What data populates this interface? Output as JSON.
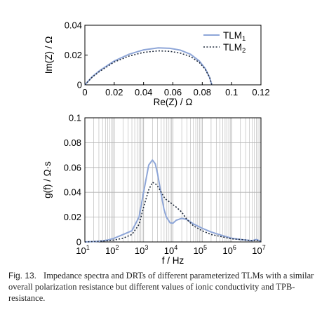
{
  "colors": {
    "tlm1": "#8ea6d8",
    "tlm2": "#1f2a3c",
    "grid": "#b3b3b3",
    "axis": "#000000"
  },
  "chart_data": [
    {
      "type": "line",
      "xlabel": "Re(Z) / Ω",
      "ylabel": "Im(Z) / Ω",
      "xlim": [
        0,
        0.12
      ],
      "ylim": [
        0,
        0.04
      ],
      "xticks": [
        0,
        0.02,
        0.04,
        0.06,
        0.08,
        0.1,
        0.12
      ],
      "xtick_labels": [
        "0",
        "0.02",
        "0.04",
        "0.06",
        "0.08",
        "0.1",
        "0.12"
      ],
      "yticks": [
        0,
        0.02,
        0.04
      ],
      "ytick_labels": [
        "0",
        "0.02",
        "0.04"
      ],
      "grid": false,
      "legend_position": "top-right",
      "series": [
        {
          "name": "TLM1",
          "legend_base": "TLM",
          "legend_sub": "1",
          "style": "solid",
          "x": [
            0,
            0.005,
            0.01,
            0.02,
            0.03,
            0.04,
            0.05,
            0.058,
            0.065,
            0.072,
            0.078,
            0.082,
            0.085,
            0.0865
          ],
          "y": [
            0,
            0.0055,
            0.0095,
            0.016,
            0.0205,
            0.0235,
            0.0248,
            0.0245,
            0.0233,
            0.0205,
            0.016,
            0.011,
            0.005,
            0
          ]
        },
        {
          "name": "TLM2",
          "legend_base": "TLM",
          "legend_sub": "2",
          "style": "dotted",
          "x": [
            0,
            0.005,
            0.01,
            0.02,
            0.03,
            0.04,
            0.05,
            0.058,
            0.065,
            0.072,
            0.078,
            0.082,
            0.085,
            0.0865
          ],
          "y": [
            0,
            0.0052,
            0.009,
            0.0153,
            0.0193,
            0.0218,
            0.0228,
            0.0225,
            0.0213,
            0.019,
            0.015,
            0.0105,
            0.005,
            0
          ]
        }
      ]
    },
    {
      "type": "line",
      "xlabel": "f / Hz",
      "ylabel": "g(f) / Ω·s",
      "xscale": "log",
      "xlim": [
        10,
        10000000
      ],
      "ylim": [
        0,
        0.1
      ],
      "x_tick_exponents": [
        1,
        2,
        3,
        4,
        5,
        6,
        7
      ],
      "x_tick_base": "10",
      "yticks": [
        0,
        0.02,
        0.04,
        0.06,
        0.08,
        0.1
      ],
      "ytick_labels": [
        "0",
        "0.02",
        "0.04",
        "0.06",
        "0.08",
        "0.1"
      ],
      "grid": true,
      "series": [
        {
          "name": "TLM1",
          "style": "solid",
          "x": [
            10,
            30,
            60,
            100,
            200,
            400,
            700,
            1000,
            1500,
            2000,
            2500,
            3000,
            4000,
            5000,
            6000,
            8000,
            10000,
            13000,
            20000,
            30000,
            50000,
            100000,
            200000,
            500000,
            1000000,
            2000000,
            5000000,
            7000000,
            10000000
          ],
          "y": [
            0,
            0.0005,
            0.0015,
            0.003,
            0.006,
            0.009,
            0.02,
            0.04,
            0.062,
            0.066,
            0.063,
            0.055,
            0.038,
            0.026,
            0.02,
            0.0155,
            0.015,
            0.0175,
            0.019,
            0.018,
            0.0145,
            0.011,
            0.008,
            0.005,
            0.003,
            0.002,
            0.001,
            0.002,
            0.0005
          ]
        },
        {
          "name": "TLM2",
          "style": "dotted",
          "x": [
            10,
            30,
            60,
            100,
            200,
            400,
            700,
            1000,
            1500,
            2000,
            2500,
            3000,
            4000,
            5000,
            6000,
            8000,
            10000,
            13000,
            20000,
            30000,
            50000,
            100000,
            200000,
            500000,
            1000000,
            2000000,
            5000000,
            7000000,
            10000000
          ],
          "y": [
            0,
            0.0005,
            0.001,
            0.0015,
            0.003,
            0.006,
            0.014,
            0.028,
            0.042,
            0.048,
            0.047,
            0.045,
            0.04,
            0.036,
            0.034,
            0.032,
            0.03,
            0.028,
            0.024,
            0.018,
            0.013,
            0.009,
            0.006,
            0.004,
            0.0025,
            0.002,
            0.001,
            0.0015,
            0.0005
          ]
        }
      ]
    }
  ],
  "caption": {
    "label": "Fig. 13.",
    "text": "Impedance spectra and DRTs of different parameterized TLMs with a similar overall polarization resistance but different values of ionic conductivity and TPB-resistance."
  }
}
